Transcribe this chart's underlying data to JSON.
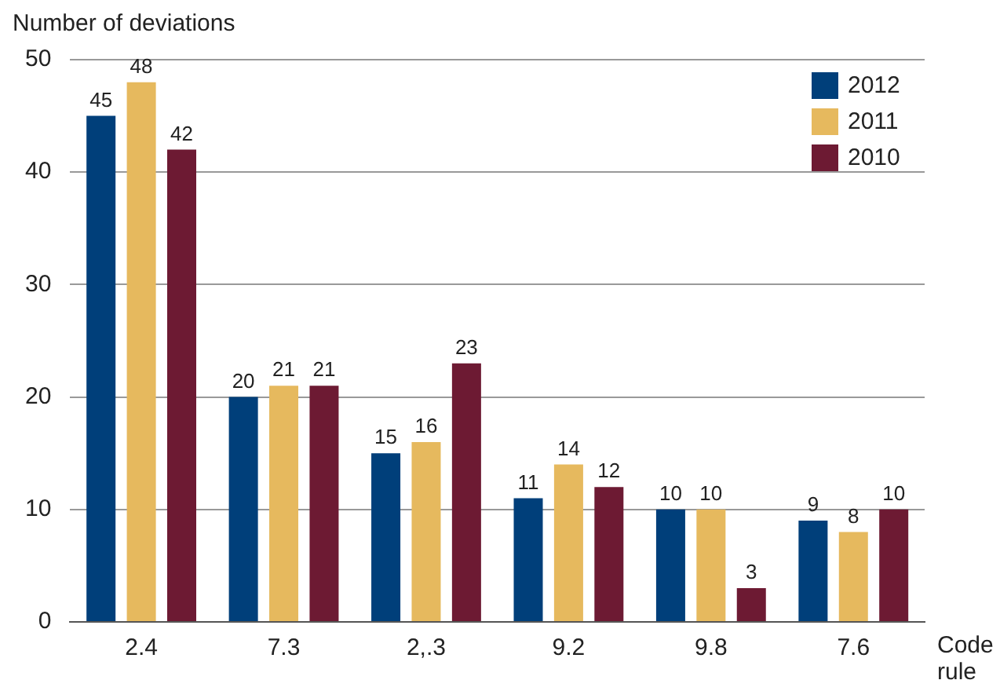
{
  "chart_data": {
    "type": "bar",
    "ylabel": "Number of deviations",
    "xlabel": "Code rule",
    "categories": [
      "2.4",
      "7.3",
      "2,.3",
      "9.2",
      "9.8",
      "7.6"
    ],
    "series": [
      {
        "name": "2012",
        "color": "#003f7a",
        "values": [
          45,
          20,
          15,
          11,
          10,
          9
        ]
      },
      {
        "name": "2011",
        "color": "#e6b95e",
        "values": [
          48,
          21,
          16,
          14,
          10,
          8
        ]
      },
      {
        "name": "2010",
        "color": "#6d1a33",
        "values": [
          42,
          21,
          23,
          12,
          3,
          10
        ]
      }
    ],
    "ylim": [
      0,
      50
    ],
    "yticks": [
      0,
      10,
      20,
      30,
      40,
      50
    ],
    "grid": "y",
    "legend": "top right",
    "data_labels": true
  }
}
